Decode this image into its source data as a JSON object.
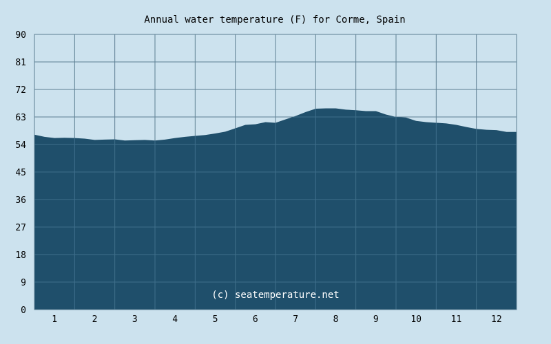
{
  "chart_data": {
    "type": "area",
    "title": "Annual water temperature (F) for Corme, Spain",
    "watermark": "(c) seatemperature.net",
    "xlabel": "",
    "ylabel": "",
    "ylim": [
      0,
      90
    ],
    "yticks": [
      0,
      9,
      18,
      27,
      36,
      45,
      54,
      63,
      72,
      81,
      90
    ],
    "xlim": [
      0.5,
      12.5
    ],
    "xticks": [
      1,
      2,
      3,
      4,
      5,
      6,
      7,
      8,
      9,
      10,
      11,
      12
    ],
    "grid": true,
    "colors": {
      "background": "#cce2ee",
      "fill": "#1f4f6b",
      "grid": "#5d7f93",
      "gridOverFill": "#3f6f8b"
    },
    "x": [
      0.5,
      0.75,
      1.0,
      1.25,
      1.5,
      1.75,
      2.0,
      2.25,
      2.5,
      2.75,
      3.0,
      3.25,
      3.5,
      3.75,
      4.0,
      4.25,
      4.5,
      4.75,
      5.0,
      5.25,
      5.5,
      5.75,
      6.0,
      6.25,
      6.5,
      6.75,
      7.0,
      7.25,
      7.5,
      7.75,
      8.0,
      8.25,
      8.5,
      8.75,
      9.0,
      9.25,
      9.5,
      9.75,
      10.0,
      10.25,
      10.5,
      10.75,
      11.0,
      11.25,
      11.5,
      11.75,
      12.0,
      12.25,
      12.5
    ],
    "values": [
      57.2,
      56.5,
      56.1,
      56.2,
      56.1,
      55.9,
      55.5,
      55.6,
      55.7,
      55.3,
      55.4,
      55.5,
      55.3,
      55.6,
      56.1,
      56.5,
      56.8,
      57.1,
      57.6,
      58.2,
      59.3,
      60.4,
      60.6,
      61.3,
      61.1,
      62.2,
      63.3,
      64.6,
      65.7,
      65.8,
      65.8,
      65.4,
      65.2,
      64.9,
      64.9,
      63.8,
      63.0,
      62.8,
      61.7,
      61.3,
      61.1,
      60.9,
      60.4,
      59.7,
      59.1,
      58.8,
      58.7,
      58.1,
      58.1
    ]
  }
}
